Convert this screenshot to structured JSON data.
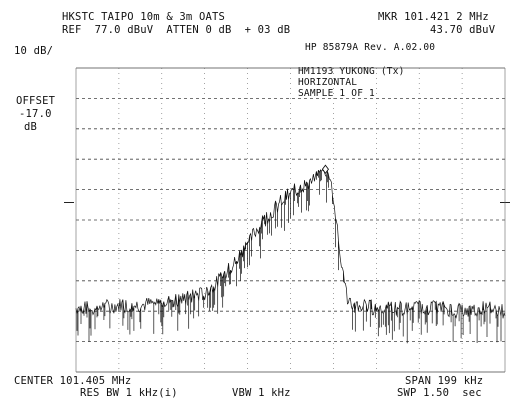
{
  "header": {
    "site_title": "HKSTC TAIPO 10m & 3m OATS",
    "ref_text": "REF  77.0 dBuV  ATTEN 0 dB  + 03 dB",
    "marker_freq": "MKR 101.421 2 MHz",
    "marker_level": "43.70 dBuV",
    "instrument": "HP 85879A Rev. A.02.00"
  },
  "left": {
    "scale": "10 dB/",
    "offset_label": "OFFSET",
    "offset_value": "-17.0",
    "offset_unit": "dB"
  },
  "annotation": {
    "line1": "HM1193 YUKONG (Tx)",
    "line2": "HORIZONTAL",
    "line3": "SAMPLE 1 OF 1"
  },
  "footer": {
    "center": "CENTER 101.405 MHz",
    "span": "SPAN 199 kHz",
    "res_bw": "RES BW 1 kHz(i)",
    "vbw": "VBW 1 kHz",
    "sweep": "SWP 1.50  sec"
  },
  "chart_data": {
    "type": "line",
    "title": "",
    "xlabel": "",
    "ylabel": "",
    "x_unit": "MHz",
    "y_unit": "dBuV",
    "center_freq_mhz": 101.405,
    "span_khz": 199,
    "ref_level_dbuv": 77.0,
    "scale_db_per_div": 10,
    "divisions": 10,
    "ylim": [
      -23,
      77
    ],
    "xlim": [
      101.3055,
      101.5045
    ],
    "grid": true,
    "marker": {
      "x": 101.4212,
      "y": 43.7
    },
    "series": [
      {
        "x": [
          101.3055,
          101.3155,
          101.3255,
          101.3355,
          101.3455,
          101.3555,
          101.3655,
          101.3705,
          101.3755,
          101.3805,
          101.3855,
          101.3905,
          101.3955,
          101.4005,
          101.4055,
          101.4105,
          101.4155,
          101.4205,
          101.4212,
          101.4235,
          101.4255,
          101.4275,
          101.4295,
          101.4315,
          101.4355,
          101.4455,
          101.4555,
          101.4655,
          101.4755,
          101.4855,
          101.4955,
          101.5045
        ],
        "y": [
          -2,
          -2,
          -1,
          -1,
          0,
          1,
          3,
          6,
          10,
          14,
          20,
          25,
          29,
          33,
          36,
          38,
          40,
          42,
          43.7,
          40,
          32,
          20,
          8,
          1,
          -1,
          -2,
          -2,
          -2,
          -2,
          -3,
          -2,
          -3
        ]
      }
    ]
  }
}
